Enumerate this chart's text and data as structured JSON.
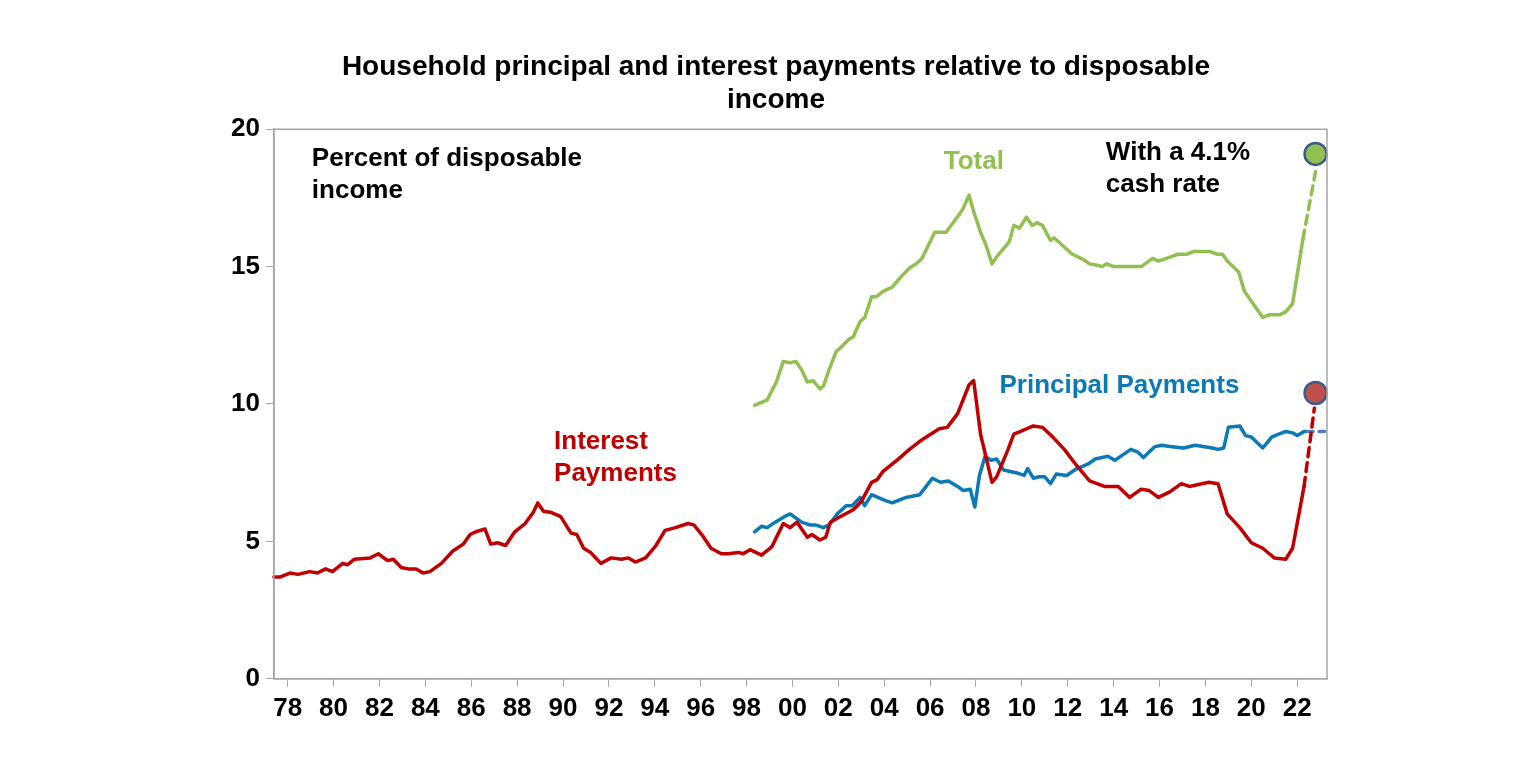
{
  "chart_data": {
    "type": "line",
    "title": "Household principal and interest payments relative to disposable income",
    "annotations": [
      "Percent of disposable income",
      "With a 4.1% cash rate"
    ],
    "xlim": [
      1977.4,
      2023.3
    ],
    "xticks": [
      {
        "value": 1978,
        "label": "78"
      },
      {
        "value": 1980,
        "label": "80"
      },
      {
        "value": 1982,
        "label": "82"
      },
      {
        "value": 1984,
        "label": "84"
      },
      {
        "value": 1986,
        "label": "86"
      },
      {
        "value": 1988,
        "label": "88"
      },
      {
        "value": 1990,
        "label": "90"
      },
      {
        "value": 1992,
        "label": "92"
      },
      {
        "value": 1994,
        "label": "94"
      },
      {
        "value": 1996,
        "label": "96"
      },
      {
        "value": 1998,
        "label": "98"
      },
      {
        "value": 2000,
        "label": "00"
      },
      {
        "value": 2002,
        "label": "02"
      },
      {
        "value": 2004,
        "label": "04"
      },
      {
        "value": 2006,
        "label": "06"
      },
      {
        "value": 2008,
        "label": "08"
      },
      {
        "value": 2010,
        "label": "10"
      },
      {
        "value": 2012,
        "label": "12"
      },
      {
        "value": 2014,
        "label": "14"
      },
      {
        "value": 2016,
        "label": "16"
      },
      {
        "value": 2018,
        "label": "18"
      },
      {
        "value": 2020,
        "label": "20"
      },
      {
        "value": 2022,
        "label": "22"
      }
    ],
    "ylim": [
      0,
      20
    ],
    "yticks": [
      0,
      5,
      10,
      15,
      20
    ],
    "grid": false,
    "legend": false,
    "marker": "none",
    "line_style": "solid",
    "series": [
      {
        "name": "Interest Payments",
        "color": "#c00000",
        "x": [
          1977.4,
          1977.65,
          1978.1,
          1978.45,
          1978.95,
          1979.3,
          1979.65,
          1979.95,
          1980.4,
          1980.6,
          1980.9,
          1981.6,
          1981.95,
          1982.35,
          1982.6,
          1982.95,
          1983.25,
          1983.6,
          1983.9,
          1984.2,
          1984.7,
          1985.2,
          1985.65,
          1985.95,
          1986.2,
          1986.6,
          1986.85,
          1987.15,
          1987.5,
          1987.9,
          1988.35,
          1988.7,
          1988.9,
          1989.15,
          1989.5,
          1989.9,
          1990.35,
          1990.6,
          1990.9,
          1991.2,
          1991.65,
          1992.1,
          1992.55,
          1992.85,
          1993.15,
          1993.6,
          1994.05,
          1994.45,
          1994.9,
          1995.45,
          1995.7,
          1996.05,
          1996.45,
          1996.9,
          1997.2,
          1997.65,
          1997.85,
          1998.15,
          1998.65,
          1999.1,
          1999.6,
          1999.9,
          2000.2,
          2000.65,
          2000.85,
          2001.2,
          2001.45,
          2001.65,
          2002.2,
          2002.65,
          2003.0,
          2003.45,
          2003.7,
          2003.95,
          2004.55,
          2005.1,
          2005.65,
          2006.4,
          2006.75,
          2007.2,
          2007.7,
          2007.9,
          2008.2,
          2008.7,
          2008.9,
          2009.4,
          2009.65,
          2010.5,
          2010.9,
          2011.4,
          2011.85,
          2012.35,
          2012.95,
          2013.6,
          2014.2,
          2014.7,
          2015.2,
          2015.55,
          2015.95,
          2016.45,
          2016.95,
          2017.3,
          2018.15,
          2018.55,
          2018.95,
          2019.5,
          2020.0,
          2020.5,
          2021.0,
          2021.5,
          2021.8,
          2022.3
        ],
        "values": [
          3.7,
          3.7,
          3.85,
          3.8,
          3.9,
          3.85,
          4.0,
          3.9,
          4.2,
          4.15,
          4.35,
          4.4,
          4.55,
          4.3,
          4.35,
          4.05,
          4.0,
          4.0,
          3.85,
          3.9,
          4.2,
          4.65,
          4.9,
          5.25,
          5.35,
          5.45,
          4.9,
          4.95,
          4.85,
          5.35,
          5.65,
          6.05,
          6.4,
          6.1,
          6.05,
          5.9,
          5.3,
          5.25,
          4.75,
          4.6,
          4.2,
          4.4,
          4.35,
          4.4,
          4.25,
          4.4,
          4.85,
          5.4,
          5.5,
          5.65,
          5.6,
          5.25,
          4.75,
          4.55,
          4.55,
          4.6,
          4.55,
          4.7,
          4.5,
          4.8,
          5.65,
          5.5,
          5.7,
          5.15,
          5.25,
          5.05,
          5.15,
          5.7,
          5.95,
          6.15,
          6.45,
          7.15,
          7.25,
          7.55,
          7.95,
          8.35,
          8.7,
          9.1,
          9.15,
          9.65,
          10.7,
          10.85,
          8.9,
          7.15,
          7.35,
          8.35,
          8.9,
          9.2,
          9.15,
          8.75,
          8.35,
          7.8,
          7.2,
          7.0,
          7.0,
          6.6,
          6.9,
          6.85,
          6.6,
          6.8,
          7.1,
          7.0,
          7.15,
          7.1,
          6.0,
          5.5,
          4.95,
          4.75,
          4.4,
          4.35,
          4.75,
          7.0
        ]
      },
      {
        "name": "Principal Payments",
        "color": "#0a79b5",
        "x": [
          1998.35,
          1998.65,
          1998.9,
          1999.25,
          1999.65,
          1999.9,
          2000.4,
          2000.75,
          2001.0,
          2001.35,
          2001.6,
          2001.95,
          2002.35,
          2002.6,
          2002.95,
          2003.15,
          2003.45,
          2004.0,
          2004.35,
          2004.95,
          2005.55,
          2006.1,
          2006.45,
          2006.8,
          2007.2,
          2007.45,
          2007.75,
          2007.95,
          2008.15,
          2008.4,
          2008.65,
          2008.9,
          2009.2,
          2009.75,
          2010.1,
          2010.25,
          2010.5,
          2010.75,
          2011.0,
          2011.25,
          2011.5,
          2011.95,
          2012.4,
          2012.85,
          2013.2,
          2013.75,
          2014.05,
          2014.75,
          2015.05,
          2015.3,
          2015.8,
          2016.1,
          2016.45,
          2017.05,
          2017.55,
          2018.3,
          2018.55,
          2018.8,
          2019.0,
          2019.5,
          2019.75,
          2020.0,
          2020.5,
          2020.9,
          2021.5,
          2021.8,
          2022.0,
          2022.3
        ],
        "values": [
          5.35,
          5.55,
          5.5,
          5.7,
          5.9,
          6.0,
          5.7,
          5.6,
          5.6,
          5.5,
          5.6,
          6.0,
          6.3,
          6.3,
          6.6,
          6.3,
          6.7,
          6.5,
          6.4,
          6.6,
          6.7,
          7.3,
          7.15,
          7.2,
          7.0,
          6.85,
          6.9,
          6.25,
          7.4,
          8.1,
          7.95,
          8.0,
          7.6,
          7.5,
          7.4,
          7.65,
          7.3,
          7.35,
          7.35,
          7.1,
          7.45,
          7.4,
          7.65,
          7.8,
          8.0,
          8.1,
          7.95,
          8.35,
          8.25,
          8.05,
          8.45,
          8.5,
          8.45,
          8.4,
          8.5,
          8.4,
          8.35,
          8.4,
          9.15,
          9.2,
          8.85,
          8.8,
          8.4,
          8.8,
          9.0,
          8.95,
          8.85,
          9.0
        ]
      },
      {
        "name": "Total",
        "color": "#92c050",
        "x": [
          1998.35,
          1998.9,
          1999.3,
          1999.6,
          1999.9,
          2000.15,
          2000.4,
          2000.65,
          2000.9,
          2001.2,
          2001.35,
          2001.6,
          2001.9,
          2002.1,
          2002.45,
          2002.65,
          2002.95,
          2003.15,
          2003.45,
          2003.65,
          2003.95,
          2004.35,
          2004.7,
          2005.1,
          2005.4,
          2005.65,
          2006.2,
          2006.7,
          2007.05,
          2007.4,
          2007.7,
          2007.9,
          2008.2,
          2008.45,
          2008.7,
          2008.9,
          2009.2,
          2009.45,
          2009.65,
          2009.9,
          2010.2,
          2010.45,
          2010.65,
          2010.9,
          2011.25,
          2011.4,
          2012.2,
          2012.7,
          2012.95,
          2013.3,
          2013.5,
          2013.7,
          2014.0,
          2015.2,
          2015.7,
          2015.95,
          2016.3,
          2016.8,
          2017.2,
          2017.5,
          2018.2,
          2018.5,
          2018.75,
          2018.95,
          2019.45,
          2019.7,
          2020.5,
          2020.8,
          2021.25,
          2021.5,
          2021.8,
          2022.25
        ],
        "values": [
          9.95,
          10.15,
          10.8,
          11.55,
          11.5,
          11.55,
          11.25,
          10.8,
          10.85,
          10.55,
          10.65,
          11.25,
          11.9,
          12.05,
          12.35,
          12.45,
          13.0,
          13.15,
          13.9,
          13.9,
          14.1,
          14.25,
          14.6,
          14.95,
          15.1,
          15.3,
          16.25,
          16.25,
          16.65,
          17.05,
          17.6,
          17.0,
          16.25,
          15.75,
          15.1,
          15.35,
          15.65,
          15.9,
          16.5,
          16.4,
          16.8,
          16.5,
          16.6,
          16.5,
          15.95,
          16.05,
          15.45,
          15.25,
          15.1,
          15.05,
          15.0,
          15.1,
          15.0,
          15.0,
          15.3,
          15.2,
          15.3,
          15.45,
          15.45,
          15.55,
          15.55,
          15.45,
          15.45,
          15.2,
          14.8,
          14.1,
          13.15,
          13.25,
          13.25,
          13.35,
          13.65,
          16.0
        ]
      },
      {
        "color": "#92c050",
        "line_style": "dashed",
        "x": [
          2022.25,
          2022.8
        ],
        "values": [
          16.0,
          18.45
        ]
      },
      {
        "color": "#c00000",
        "line_style": "dashed",
        "x": [
          2022.3,
          2022.75
        ],
        "values": [
          7.0,
          9.85
        ]
      },
      {
        "color": "#4f81bd",
        "line_style": "dashed",
        "x": [
          2022.3,
          2023.2
        ],
        "values": [
          9.0,
          9.0
        ]
      },
      {
        "type": "scatter",
        "marker": "circle",
        "color": "#92c050",
        "x": [
          2022.8
        ],
        "values": [
          19.1
        ]
      },
      {
        "type": "scatter",
        "marker": "circle",
        "color": "#c0504d",
        "x": [
          2022.8
        ],
        "values": [
          10.4
        ]
      }
    ]
  }
}
